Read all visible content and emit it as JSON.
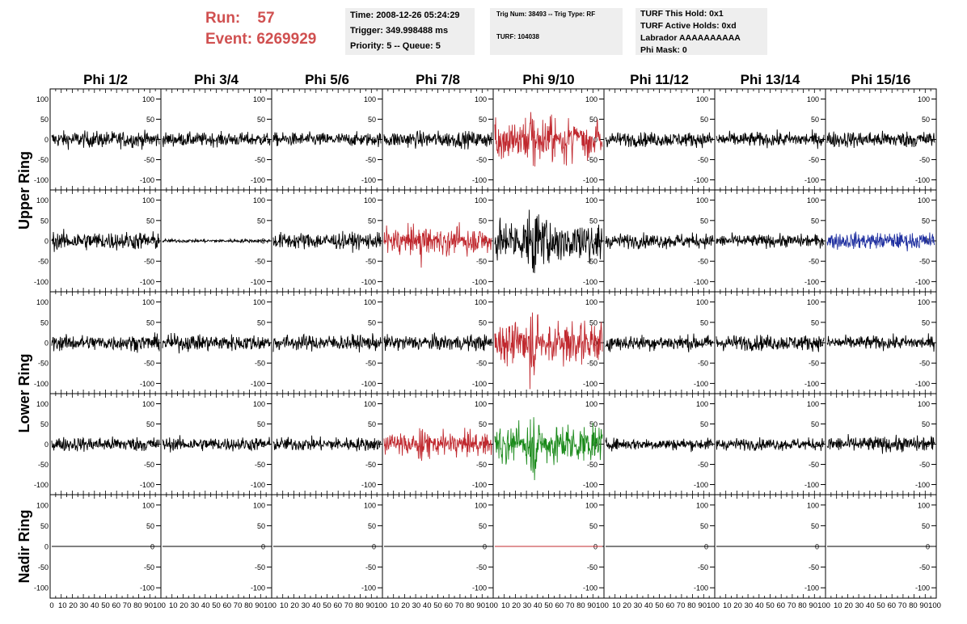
{
  "header": {
    "run_label": "Run:",
    "run_value": "57",
    "event_label": "Event:",
    "event_value": "6269929",
    "time": "Time: 2008-12-26 05:24:29",
    "trigger": "Trigger: 349.998488 ms",
    "priority": "Priority: 5 -- Queue: 5",
    "trig_num": "Trig Num: 38493 -- Trig Type: RF",
    "turf": "TURF: 104038",
    "turf_this_hold": "TURF This Hold: 0x1",
    "turf_active_holds": "TURF Active Holds: 0xd",
    "labrador": "Labrador AAAAAAAAAA",
    "phi_mask": "Phi Mask: 0"
  },
  "chart_data": {
    "type": "line",
    "columns": [
      "Phi 1/2",
      "Phi 3/4",
      "Phi 5/6",
      "Phi 7/8",
      "Phi 9/10",
      "Phi 11/12",
      "Phi 13/14",
      "Phi 15/16"
    ],
    "rows": [
      {
        "label": "Upper Ring",
        "panels": 2
      },
      {
        "label": "Lower Ring",
        "panels": 2
      },
      {
        "label": "Nadir Ring",
        "panels": 1
      }
    ],
    "xlim": [
      0,
      100
    ],
    "ylim": [
      -125,
      125
    ],
    "x_ticks": [
      "0",
      "10",
      "20",
      "30",
      "40",
      "50",
      "60",
      "70",
      "80",
      "90",
      "100"
    ],
    "y_ticks": [
      "100",
      "50",
      "0",
      "-50",
      "-100"
    ],
    "colors": {
      "default": "#000000",
      "red": "#c0282e",
      "green": "#1a8a1a",
      "blue": "#2030a0",
      "title_red": "#d05050"
    },
    "panels": [
      [
        "default",
        "default",
        "default",
        "default",
        "red",
        "default",
        "default",
        "default"
      ],
      [
        "default",
        "default",
        "default",
        "red",
        "default",
        "default",
        "default",
        "blue"
      ],
      [
        "default",
        "default",
        "default",
        "default",
        "red",
        "default",
        "default",
        "default"
      ],
      [
        "default",
        "default",
        "default",
        "red",
        "green",
        "default",
        "default",
        "default"
      ],
      [
        "default",
        "default",
        "default",
        "default",
        "red",
        "default",
        "default",
        "default"
      ]
    ],
    "amplitude": [
      [
        18,
        15,
        15,
        18,
        45,
        16,
        16,
        18
      ],
      [
        20,
        4,
        18,
        28,
        45,
        16,
        14,
        18
      ],
      [
        17,
        18,
        17,
        17,
        45,
        17,
        17,
        15
      ],
      [
        16,
        15,
        15,
        25,
        40,
        13,
        13,
        17
      ],
      [
        0,
        0,
        0,
        0,
        0,
        0,
        0,
        0
      ]
    ],
    "pulse": [
      [
        0,
        0,
        0,
        0,
        55,
        0,
        0,
        0
      ],
      [
        0,
        0,
        0,
        25,
        60,
        0,
        0,
        0
      ],
      [
        0,
        0,
        0,
        0,
        55,
        0,
        0,
        0
      ],
      [
        0,
        0,
        0,
        20,
        55,
        0,
        0,
        0
      ],
      [
        0,
        0,
        0,
        0,
        0,
        0,
        0,
        0
      ]
    ]
  }
}
